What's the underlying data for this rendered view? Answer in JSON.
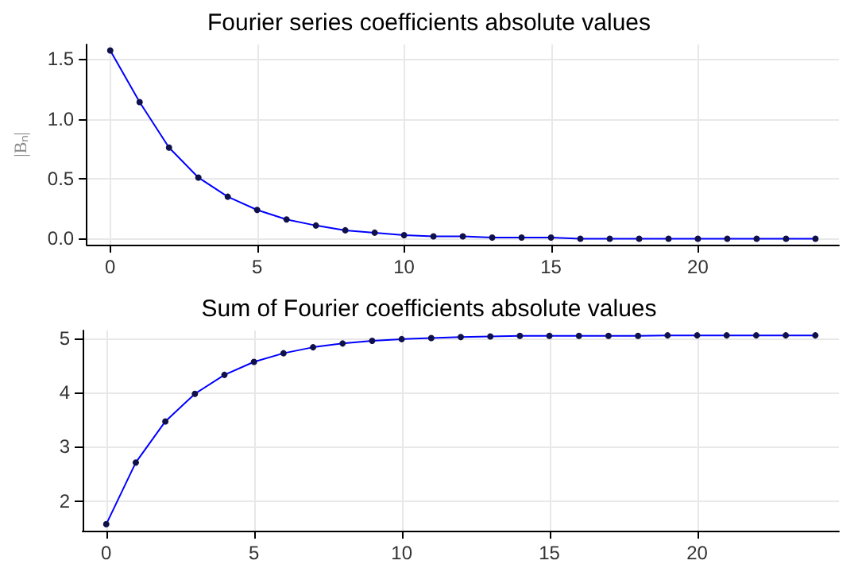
{
  "chart_data": [
    {
      "type": "line",
      "title": "Fourier series coefficients absolute values",
      "ylabel": "|Bₙ|",
      "x": [
        0,
        1,
        2,
        3,
        4,
        5,
        6,
        7,
        8,
        9,
        10,
        11,
        12,
        13,
        14,
        15,
        16,
        17,
        18,
        19,
        20,
        21,
        22,
        23,
        24
      ],
      "series": [
        {
          "color": "#0000ff",
          "values": [
            1.57,
            1.14,
            0.76,
            0.51,
            0.35,
            0.24,
            0.16,
            0.11,
            0.07,
            0.05,
            0.03,
            0.02,
            0.02,
            0.01,
            0.01,
            0.01,
            0,
            0,
            0,
            0,
            0,
            0,
            0,
            0,
            0
          ]
        }
      ],
      "xlim": [
        -0.8,
        24.8
      ],
      "xticks": [
        0,
        5,
        10,
        15,
        20
      ],
      "ylim": [
        -0.05,
        1.62
      ],
      "yticks": [
        {
          "value": 0,
          "label": "0.0"
        },
        0.5,
        {
          "value": 1,
          "label": "1.0"
        },
        1.5
      ],
      "grid": true,
      "marker": "circle",
      "line_style": "solid"
    },
    {
      "type": "line",
      "title": "Sum of Fourier coefficients absolute values",
      "x": [
        0,
        1,
        2,
        3,
        4,
        5,
        6,
        7,
        8,
        9,
        10,
        11,
        12,
        13,
        14,
        15,
        16,
        17,
        18,
        19,
        20,
        21,
        22,
        23,
        24
      ],
      "series": [
        {
          "color": "#0000ff",
          "values": [
            1.57,
            2.71,
            3.47,
            3.98,
            4.33,
            4.57,
            4.73,
            4.84,
            4.91,
            4.96,
            4.99,
            5.01,
            5.03,
            5.04,
            5.05,
            5.05,
            5.05,
            5.05,
            5.05,
            5.06,
            5.06,
            5.06,
            5.06,
            5.06,
            5.06
          ]
        }
      ],
      "xlim": [
        -0.8,
        24.8
      ],
      "xticks": [
        0,
        5,
        10,
        15,
        20
      ],
      "ylim": [
        1.45,
        5.15
      ],
      "yticks": [
        2,
        3,
        4,
        5
      ],
      "grid": true,
      "marker": "circle",
      "line_style": "solid"
    }
  ]
}
